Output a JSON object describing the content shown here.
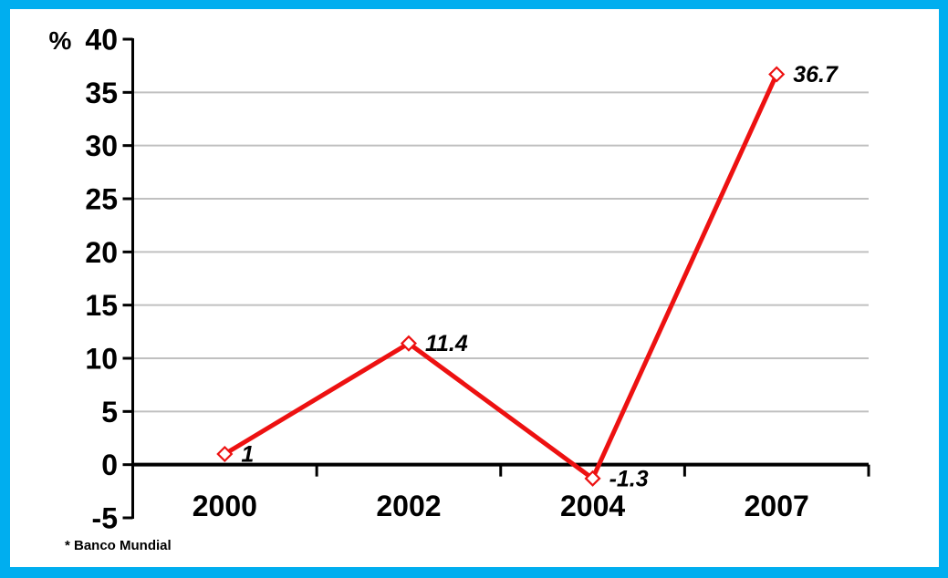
{
  "chart_data": {
    "type": "line",
    "categories": [
      "2000",
      "2002",
      "2004",
      "2007"
    ],
    "values": [
      1,
      11.4,
      -1.3,
      36.7
    ],
    "point_labels": [
      "1",
      "11.4",
      "-1.3",
      "36.7"
    ],
    "unit_label": "%",
    "ylim": [
      -5,
      40
    ],
    "ytick_step": 5,
    "grid": true,
    "legend": "none",
    "footnote": "* Banco Mundial",
    "colors": {
      "line": "#ED1111",
      "marker_fill": "#FFFFFF",
      "grid": "#C0C0C0",
      "axis": "#000000",
      "border": "#00AEEF",
      "text": "#000000"
    }
  }
}
